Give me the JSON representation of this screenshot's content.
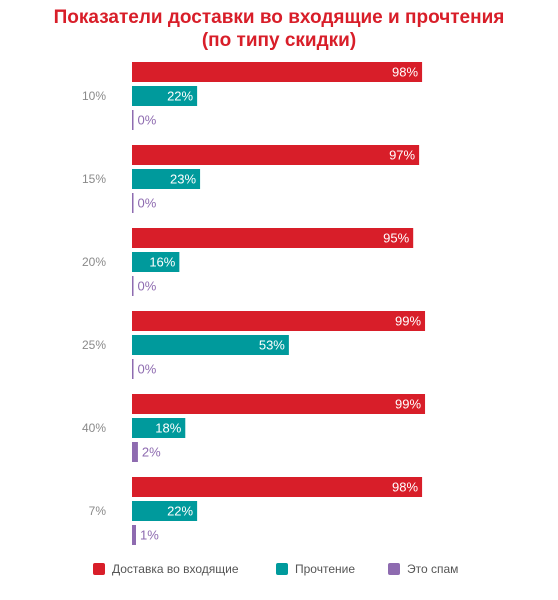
{
  "chart_data": {
    "type": "bar",
    "orientation": "horizontal",
    "title_lines": [
      "Показатели доставки во входящие и прочтения",
      "(по типу скидки)"
    ],
    "categories": [
      "10%",
      "15%",
      "20%",
      "25%",
      "40%",
      "7%"
    ],
    "series": [
      {
        "name": "Доставка во входящие",
        "color": "#d81e29",
        "values": [
          98,
          97,
          95,
          99,
          99,
          98
        ],
        "labels": [
          "98%",
          "97%",
          "95%",
          "99%",
          "99%",
          "98%"
        ]
      },
      {
        "name": "Прочтение",
        "color": "#009a9c",
        "values": [
          22,
          23,
          16,
          53,
          18,
          22
        ],
        "labels": [
          "22%",
          "23%",
          "16%",
          "53%",
          "18%",
          "22%"
        ]
      },
      {
        "name": "Это спам",
        "color": "#8e6bb0",
        "values": [
          0,
          0,
          0,
          0,
          2,
          1
        ],
        "labels": [
          "0%",
          "0%",
          "0%",
          "0%",
          "2%",
          "1%"
        ]
      }
    ],
    "xlim": [
      0,
      100
    ],
    "grid": false,
    "legend_position": "bottom",
    "data_labels": true
  }
}
